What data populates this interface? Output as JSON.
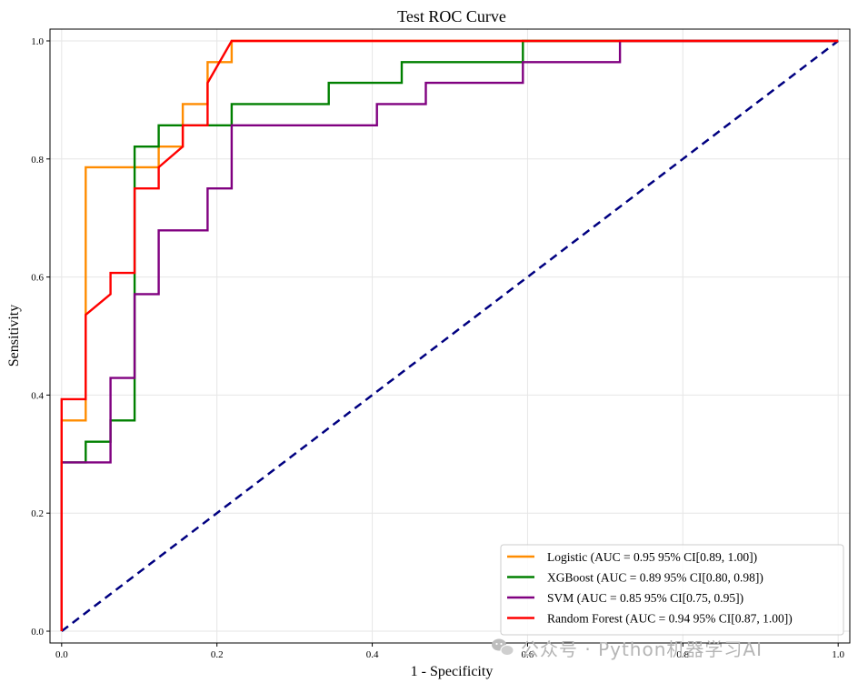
{
  "chart_data": {
    "type": "line",
    "title": "Test ROC Curve",
    "xlabel": "1 - Specificity",
    "ylabel": "Sensitivity",
    "xlim": [
      -0.015,
      1.015
    ],
    "ylim": [
      -0.02,
      1.02
    ],
    "xticks": [
      "0.0",
      "0.2",
      "0.4",
      "0.6",
      "0.8",
      "1.0"
    ],
    "yticks": [
      "0.0",
      "0.2",
      "0.4",
      "0.6",
      "0.8",
      "1.0"
    ],
    "grid": true,
    "legend_position": "lower-right",
    "series": [
      {
        "name": "Logistic (AUC = 0.95 95% CI[0.89, 1.00])",
        "color": "#ff8c00",
        "x": [
          0,
          0,
          0,
          0.031,
          0.031,
          0.094,
          0.125,
          0.125,
          0.156,
          0.156,
          0.188,
          0.188,
          0.219,
          0.219,
          1.0
        ],
        "y": [
          0,
          0.286,
          0.357,
          0.357,
          0.786,
          0.786,
          0.786,
          0.821,
          0.821,
          0.893,
          0.893,
          0.964,
          0.964,
          1.0,
          1.0
        ]
      },
      {
        "name": "XGBoost (AUC = 0.89 95% CI[0.80, 0.98])",
        "color": "#008000",
        "x": [
          0,
          0,
          0.031,
          0.031,
          0.063,
          0.063,
          0.094,
          0.094,
          0.125,
          0.125,
          0.219,
          0.219,
          0.344,
          0.344,
          0.438,
          0.438,
          0.594,
          0.594,
          1.0
        ],
        "y": [
          0,
          0.286,
          0.286,
          0.321,
          0.321,
          0.357,
          0.357,
          0.821,
          0.821,
          0.857,
          0.857,
          0.893,
          0.893,
          0.929,
          0.929,
          0.964,
          0.964,
          1.0,
          1.0
        ]
      },
      {
        "name": "SVM (AUC = 0.85 95% CI[0.75, 0.95])",
        "color": "#800080",
        "x": [
          0,
          0,
          0.063,
          0.063,
          0.094,
          0.094,
          0.125,
          0.125,
          0.188,
          0.188,
          0.219,
          0.219,
          0.406,
          0.406,
          0.469,
          0.469,
          0.594,
          0.594,
          0.719,
          0.719,
          1.0
        ],
        "y": [
          0,
          0.286,
          0.286,
          0.429,
          0.429,
          0.571,
          0.571,
          0.679,
          0.679,
          0.75,
          0.75,
          0.857,
          0.857,
          0.893,
          0.893,
          0.929,
          0.929,
          0.964,
          0.964,
          1.0,
          1.0
        ]
      },
      {
        "name": "Random Forest (AUC = 0.94 95% CI[0.87, 1.00])",
        "color": "#ff0000",
        "x": [
          0,
          0,
          0.031,
          0.031,
          0.063,
          0.063,
          0.094,
          0.094,
          0.125,
          0.125,
          0.156,
          0.156,
          0.188,
          0.188,
          0.219,
          1.0
        ],
        "y": [
          0,
          0.393,
          0.393,
          0.536,
          0.571,
          0.607,
          0.607,
          0.75,
          0.75,
          0.786,
          0.821,
          0.857,
          0.857,
          0.929,
          1.0,
          1.0
        ]
      }
    ],
    "reference_line": {
      "x": [
        0,
        1
      ],
      "y": [
        0,
        1
      ],
      "color": "#000080",
      "style": "dashed"
    }
  },
  "watermark": {
    "text": "公众号 · Python机器学习AI"
  }
}
